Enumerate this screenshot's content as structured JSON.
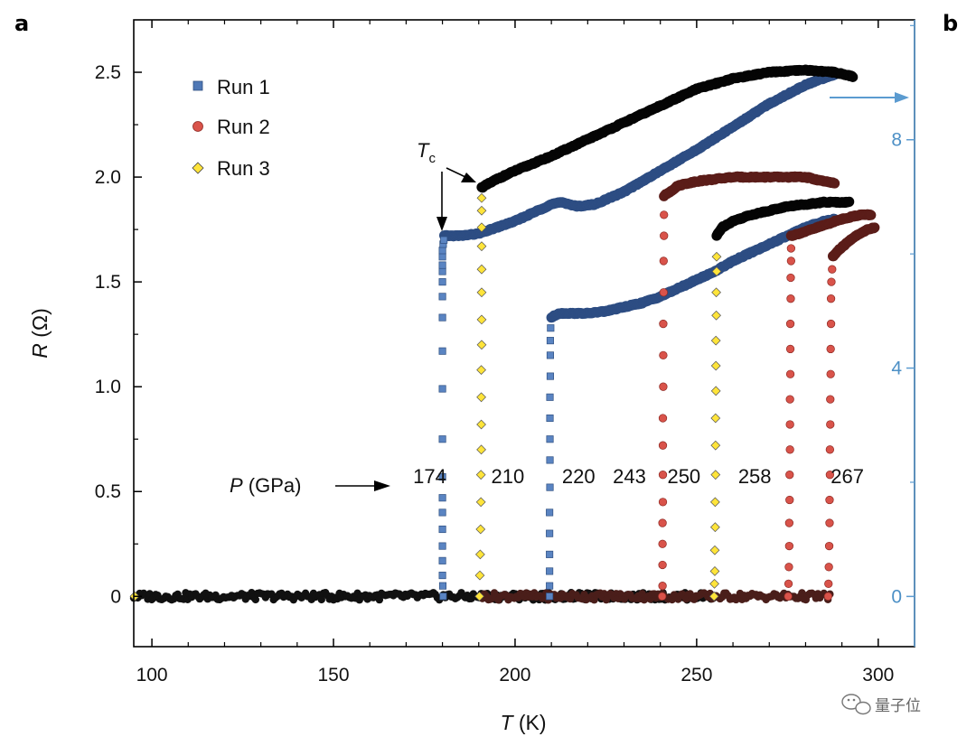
{
  "chart_data": {
    "type": "scatter",
    "panel_labels": [
      "a",
      "b"
    ],
    "xlabel_var": "T",
    "xlabel_unit": " (K)",
    "ylabel_var": "R",
    "ylabel_unit": " (Ω)",
    "xlim": [
      95,
      310
    ],
    "ylim": [
      -0.24,
      2.75
    ],
    "x_ticks": [
      100,
      150,
      200,
      250,
      300
    ],
    "y_ticks": [
      0,
      0.5,
      1.0,
      1.5,
      2.0,
      2.5
    ],
    "y_tick_labels": [
      "0",
      "0.5",
      "1.0",
      "1.5",
      "2.0",
      "2.5"
    ],
    "right_axis": {
      "color": "#5b9bd0",
      "ticks": [
        0,
        4,
        8
      ],
      "ylim": [
        -0.88,
        10.1
      ]
    },
    "legend": {
      "position": "top-left",
      "entries": [
        {
          "label": "Run 1",
          "marker": "square",
          "color": "#4f78b6"
        },
        {
          "label": "Run 2",
          "marker": "circle",
          "color": "#d9534a"
        },
        {
          "label": "Run 3",
          "marker": "diamond",
          "color": "#ffe43a"
        }
      ]
    },
    "annotations": {
      "tc_var": "T",
      "tc_sub": "c",
      "pressure_var": "P",
      "pressure_unit": " (GPa)"
    },
    "pressures": [
      {
        "label": "174",
        "T": 176.5,
        "R": 0.54
      },
      {
        "label": "210",
        "T": 198,
        "R": 0.54
      },
      {
        "label": "220",
        "T": 217.5,
        "R": 0.54
      },
      {
        "label": "243",
        "T": 231.5,
        "R": 0.54
      },
      {
        "label": "250",
        "T": 246.5,
        "R": 0.54
      },
      {
        "label": "258",
        "T": 266,
        "R": 0.54
      },
      {
        "label": "267",
        "T": 291.5,
        "R": 0.54
      }
    ],
    "curves": [
      {
        "run": "Run 1",
        "pressure": "174",
        "Tc": 180.3,
        "color": "#4f78b6",
        "marker": "square",
        "normal": [
          [
            180.5,
            1.72
          ],
          [
            185,
            1.72
          ],
          [
            190,
            1.73
          ],
          [
            195,
            1.76
          ],
          [
            200,
            1.79
          ],
          [
            205,
            1.83
          ],
          [
            210,
            1.87
          ],
          [
            213,
            1.88
          ],
          [
            217,
            1.86
          ],
          [
            222,
            1.87
          ],
          [
            230,
            1.93
          ],
          [
            240,
            2.03
          ],
          [
            250,
            2.13
          ],
          [
            260,
            2.24
          ],
          [
            270,
            2.35
          ],
          [
            280,
            2.44
          ],
          [
            288,
            2.49
          ]
        ],
        "transition": [
          [
            180.2,
            0.0
          ],
          [
            180.1,
            0.05
          ],
          [
            180.0,
            0.1
          ],
          [
            180.0,
            0.17
          ],
          [
            180.0,
            0.24
          ],
          [
            180.0,
            0.32
          ],
          [
            180.0,
            0.4
          ],
          [
            180.0,
            0.47
          ],
          [
            180.0,
            0.57
          ],
          [
            180.0,
            0.75
          ],
          [
            180.0,
            0.99
          ],
          [
            180.0,
            1.17
          ],
          [
            180.0,
            1.33
          ],
          [
            180.0,
            1.43
          ],
          [
            180.0,
            1.5
          ],
          [
            180.0,
            1.55
          ],
          [
            180.0,
            1.58
          ],
          [
            180.0,
            1.62
          ],
          [
            180.0,
            1.65
          ],
          [
            180.2,
            1.68
          ],
          [
            180.4,
            1.7
          ]
        ]
      },
      {
        "run": "Run 3",
        "pressure": "210",
        "Tc": 190.8,
        "color": "#1a1a1a",
        "marker": "diamond",
        "normal": [
          [
            190.8,
            1.95
          ],
          [
            195,
            1.99
          ],
          [
            200,
            2.03
          ],
          [
            210,
            2.1
          ],
          [
            220,
            2.18
          ],
          [
            230,
            2.26
          ],
          [
            240,
            2.34
          ],
          [
            250,
            2.42
          ],
          [
            260,
            2.47
          ],
          [
            270,
            2.5
          ],
          [
            280,
            2.51
          ],
          [
            288,
            2.5
          ],
          [
            293,
            2.48
          ]
        ],
        "transition": [
          [
            190.2,
            0.0
          ],
          [
            190.3,
            0.1
          ],
          [
            190.4,
            0.2
          ],
          [
            190.5,
            0.32
          ],
          [
            190.6,
            0.45
          ],
          [
            190.6,
            0.58
          ],
          [
            190.7,
            0.7
          ],
          [
            190.7,
            0.82
          ],
          [
            190.7,
            0.95
          ],
          [
            190.7,
            1.08
          ],
          [
            190.8,
            1.2
          ],
          [
            190.8,
            1.32
          ],
          [
            190.8,
            1.45
          ],
          [
            190.8,
            1.56
          ],
          [
            190.8,
            1.67
          ],
          [
            190.8,
            1.76
          ],
          [
            190.8,
            1.84
          ],
          [
            190.8,
            1.9
          ]
        ]
      },
      {
        "run": "Run 1",
        "pressure": "220",
        "Tc": 209.8,
        "color": "#4f78b6",
        "marker": "square",
        "normal": [
          [
            210,
            1.33
          ],
          [
            212,
            1.35
          ],
          [
            220,
            1.35
          ],
          [
            225,
            1.36
          ],
          [
            230,
            1.38
          ],
          [
            235,
            1.4
          ],
          [
            240,
            1.43
          ],
          [
            245,
            1.47
          ],
          [
            250,
            1.51
          ],
          [
            255,
            1.55
          ],
          [
            260,
            1.6
          ],
          [
            265,
            1.64
          ],
          [
            270,
            1.68
          ],
          [
            275,
            1.72
          ],
          [
            280,
            1.76
          ],
          [
            285,
            1.79
          ],
          [
            288,
            1.8
          ]
        ],
        "transition": [
          [
            209.5,
            0.0
          ],
          [
            209.5,
            0.05
          ],
          [
            209.5,
            0.12
          ],
          [
            209.5,
            0.2
          ],
          [
            209.5,
            0.3
          ],
          [
            209.5,
            0.4
          ],
          [
            209.6,
            0.52
          ],
          [
            209.6,
            0.65
          ],
          [
            209.6,
            0.75
          ],
          [
            209.6,
            0.85
          ],
          [
            209.6,
            0.95
          ],
          [
            209.7,
            1.05
          ],
          [
            209.7,
            1.15
          ],
          [
            209.7,
            1.22
          ],
          [
            209.8,
            1.28
          ]
        ]
      },
      {
        "run": "Run 2",
        "pressure": "243",
        "Tc": 241.0,
        "color": "#c9473f",
        "marker": "circle",
        "normal": [
          [
            241,
            1.91
          ],
          [
            245,
            1.96
          ],
          [
            250,
            1.98
          ],
          [
            255,
            1.99
          ],
          [
            260,
            2.0
          ],
          [
            265,
            2.0
          ],
          [
            270,
            2.0
          ],
          [
            275,
            2.0
          ],
          [
            280,
            2.0
          ],
          [
            285,
            1.98
          ],
          [
            288,
            1.97
          ]
        ],
        "transition": [
          [
            240.5,
            0.0
          ],
          [
            240.6,
            0.05
          ],
          [
            240.6,
            0.15
          ],
          [
            240.6,
            0.25
          ],
          [
            240.6,
            0.35
          ],
          [
            240.7,
            0.45
          ],
          [
            240.7,
            0.58
          ],
          [
            240.7,
            0.72
          ],
          [
            240.7,
            0.85
          ],
          [
            240.8,
            1.0
          ],
          [
            240.8,
            1.15
          ],
          [
            240.8,
            1.3
          ],
          [
            240.9,
            1.45
          ],
          [
            240.9,
            1.6
          ],
          [
            241.0,
            1.72
          ],
          [
            241.0,
            1.82
          ]
        ]
      },
      {
        "run": "Run 3",
        "pressure": "250",
        "Tc": 255.5,
        "color": "#1a1a1a",
        "marker": "diamond",
        "normal": [
          [
            255.5,
            1.72
          ],
          [
            257,
            1.76
          ],
          [
            260,
            1.79
          ],
          [
            265,
            1.82
          ],
          [
            270,
            1.84
          ],
          [
            275,
            1.86
          ],
          [
            280,
            1.87
          ],
          [
            285,
            1.88
          ],
          [
            290,
            1.88
          ],
          [
            292,
            1.88
          ]
        ],
        "transition": [
          [
            254.8,
            0.0
          ],
          [
            254.9,
            0.06
          ],
          [
            255.0,
            0.12
          ],
          [
            255.0,
            0.22
          ],
          [
            255.1,
            0.33
          ],
          [
            255.1,
            0.45
          ],
          [
            255.2,
            0.58
          ],
          [
            255.2,
            0.72
          ],
          [
            255.2,
            0.85
          ],
          [
            255.3,
            0.98
          ],
          [
            255.3,
            1.1
          ],
          [
            255.3,
            1.22
          ],
          [
            255.4,
            1.34
          ],
          [
            255.4,
            1.45
          ],
          [
            255.5,
            1.55
          ],
          [
            255.5,
            1.62
          ]
        ]
      },
      {
        "run": "Run 2",
        "pressure": "258",
        "Tc": 276.0,
        "color": "#c9473f",
        "marker": "circle",
        "normal": [
          [
            276,
            1.72
          ],
          [
            280,
            1.74
          ],
          [
            285,
            1.77
          ],
          [
            290,
            1.8
          ],
          [
            295,
            1.82
          ],
          [
            298,
            1.82
          ]
        ],
        "transition": [
          [
            275.2,
            0.0
          ],
          [
            275.3,
            0.06
          ],
          [
            275.4,
            0.14
          ],
          [
            275.5,
            0.24
          ],
          [
            275.5,
            0.35
          ],
          [
            275.6,
            0.46
          ],
          [
            275.6,
            0.58
          ],
          [
            275.7,
            0.7
          ],
          [
            275.7,
            0.82
          ],
          [
            275.7,
            0.94
          ],
          [
            275.8,
            1.06
          ],
          [
            275.8,
            1.18
          ],
          [
            275.8,
            1.3
          ],
          [
            275.9,
            1.42
          ],
          [
            275.9,
            1.52
          ],
          [
            276.0,
            1.6
          ],
          [
            276.0,
            1.66
          ]
        ]
      },
      {
        "run": "Run 2",
        "pressure": "267",
        "Tc": 287.0,
        "color": "#c9473f",
        "marker": "circle",
        "normal": [
          [
            287.5,
            1.62
          ],
          [
            289,
            1.65
          ],
          [
            291,
            1.68
          ],
          [
            293,
            1.71
          ],
          [
            295,
            1.73
          ],
          [
            297,
            1.75
          ],
          [
            299,
            1.76
          ]
        ],
        "transition": [
          [
            286.2,
            0.0
          ],
          [
            286.3,
            0.06
          ],
          [
            286.4,
            0.14
          ],
          [
            286.5,
            0.24
          ],
          [
            286.6,
            0.35
          ],
          [
            286.6,
            0.46
          ],
          [
            286.7,
            0.58
          ],
          [
            286.7,
            0.7
          ],
          [
            286.8,
            0.82
          ],
          [
            286.8,
            0.94
          ],
          [
            286.9,
            1.06
          ],
          [
            286.9,
            1.18
          ],
          [
            287.0,
            1.3
          ],
          [
            287.0,
            1.42
          ],
          [
            287.1,
            1.5
          ],
          [
            287.3,
            1.56
          ]
        ]
      }
    ],
    "baseline_runs": [
      {
        "run": "Run 3",
        "from": 95,
        "to": 255,
        "color": "#111111"
      },
      {
        "run": "Run 2",
        "from": 191,
        "to": 287,
        "color": "#4a1e1a"
      }
    ]
  },
  "watermark": {
    "text": "量子位"
  }
}
